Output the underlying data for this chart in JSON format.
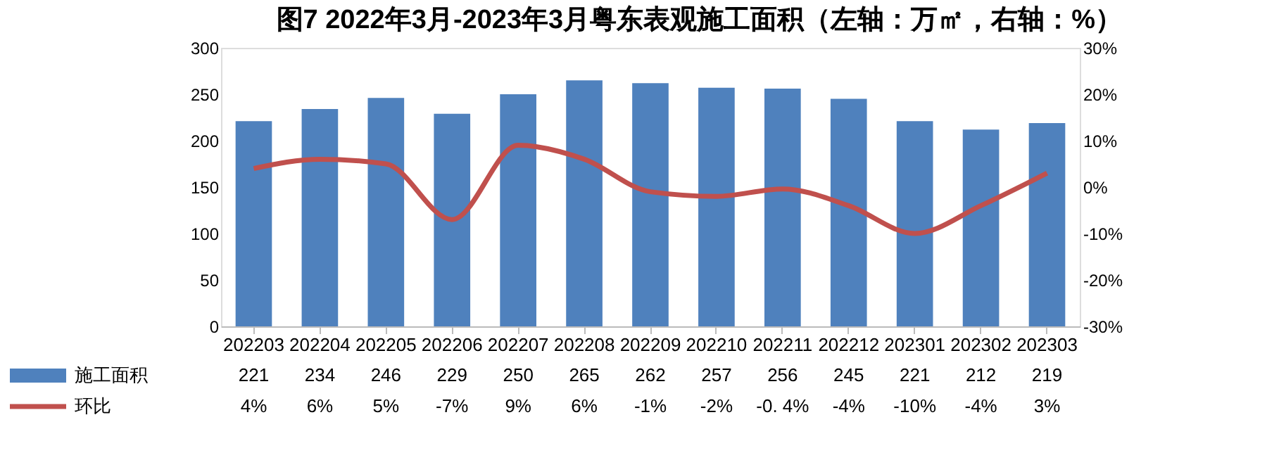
{
  "chart_data": {
    "type": "bar",
    "title": "图7  2022年3月-2023年3月粤东表观施工面积（左轴：万㎡，右轴：%）",
    "categories": [
      "202203",
      "202204",
      "202205",
      "202206",
      "202207",
      "202208",
      "202209",
      "202210",
      "202211",
      "202212",
      "202301",
      "202302",
      "202303"
    ],
    "series": [
      {
        "name": "施工面积",
        "color": "#4f81bd",
        "values": [
          221,
          234,
          246,
          229,
          250,
          265,
          262,
          257,
          256,
          245,
          221,
          212,
          219
        ],
        "value_labels": [
          "221",
          "234",
          "246",
          "229",
          "250",
          "265",
          "262",
          "257",
          "256",
          "245",
          "221",
          "212",
          "219"
        ]
      },
      {
        "name": "环比",
        "type": "line",
        "axis": "y2",
        "color": "#c0504d",
        "values": [
          4,
          6,
          5,
          -7,
          9,
          6,
          -1,
          -2,
          -0.4,
          -4,
          -10,
          -4,
          3
        ],
        "value_labels": [
          "4%",
          "6%",
          "5%",
          "-7%",
          "9%",
          "6%",
          "-1%",
          "-2%",
          "-0. 4%",
          "-4%",
          "-10%",
          "-4%",
          "3%"
        ]
      }
    ],
    "ylim": [
      0,
      300
    ],
    "yticks": [
      0,
      50,
      100,
      150,
      200,
      250,
      300
    ],
    "y2lim": [
      -30,
      30
    ],
    "y2ticks": [
      {
        "value": -30,
        "label": "-30%"
      },
      {
        "value": -20,
        "label": "-20%"
      },
      {
        "value": -10,
        "label": "-10%"
      },
      {
        "value": 0,
        "label": "0%"
      },
      {
        "value": 10,
        "label": "10%"
      },
      {
        "value": 20,
        "label": "20%"
      },
      {
        "value": 30,
        "label": "30%"
      }
    ],
    "legend": "bottom",
    "grid": false,
    "line_style": "solid",
    "marker": "none"
  }
}
